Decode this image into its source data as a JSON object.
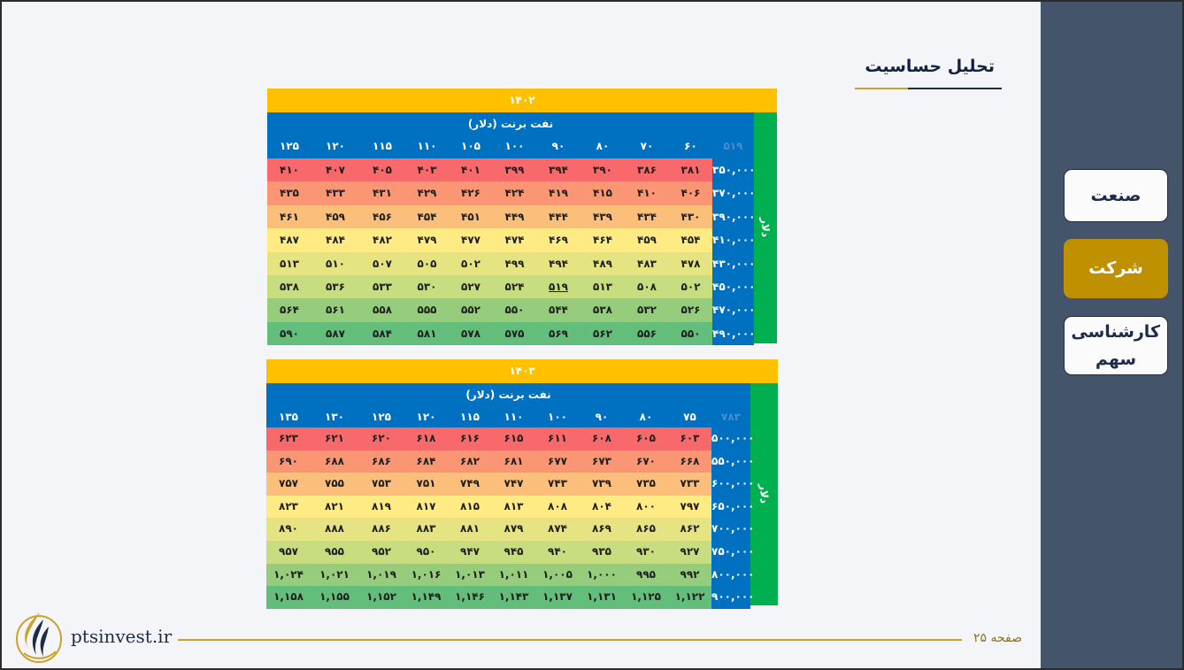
{
  "page": {
    "title": "تحلیل حساسیت",
    "page_label": "صفحه ۲۵",
    "site": "ptsinvest.ir"
  },
  "sidebar": {
    "items": [
      {
        "label": "صنعت",
        "active": false
      },
      {
        "label": "شرکت",
        "active": true
      },
      {
        "label": "کارشناسی سهم",
        "active": false
      }
    ]
  },
  "colors": {
    "year_bar": "#ffc000",
    "side_bar": "#00b050",
    "header": "#0070c0",
    "sidebar": "#44546a",
    "active_nav": "#bf9000",
    "heat_low": "#f8696b",
    "heat_mid": "#ffeb84",
    "heat_high": "#63be7b"
  },
  "tables": [
    {
      "year": "۱۴۰۲",
      "caption": "نفت برنت (دلار)",
      "side_label": "دلار",
      "corner": "۵۱۹",
      "columns": [
        "۶۰",
        "۷۰",
        "۸۰",
        "۹۰",
        "۱۰۰",
        "۱۰۵",
        "۱۱۰",
        "۱۱۵",
        "۱۲۰",
        "۱۲۵"
      ],
      "highlight": {
        "row": 5,
        "col": 3
      },
      "rows": [
        {
          "label": "۳۵۰,۰۰۰",
          "values": [
            "۳۸۱",
            "۳۸۶",
            "۳۹۰",
            "۳۹۴",
            "۳۹۹",
            "۴۰۱",
            "۴۰۳",
            "۴۰۵",
            "۴۰۷",
            "۴۱۰"
          ]
        },
        {
          "label": "۳۷۰,۰۰۰",
          "values": [
            "۴۰۶",
            "۴۱۰",
            "۴۱۵",
            "۴۱۹",
            "۴۲۴",
            "۴۲۶",
            "۴۲۹",
            "۴۳۱",
            "۴۳۳",
            "۴۳۵"
          ]
        },
        {
          "label": "۳۹۰,۰۰۰",
          "values": [
            "۴۳۰",
            "۴۳۴",
            "۴۳۹",
            "۴۴۴",
            "۴۴۹",
            "۴۵۱",
            "۴۵۴",
            "۴۵۶",
            "۴۵۹",
            "۴۶۱"
          ]
        },
        {
          "label": "۴۱۰,۰۰۰",
          "values": [
            "۴۵۴",
            "۴۵۹",
            "۴۶۴",
            "۴۶۹",
            "۴۷۴",
            "۴۷۷",
            "۴۷۹",
            "۴۸۲",
            "۴۸۴",
            "۴۸۷"
          ]
        },
        {
          "label": "۴۳۰,۰۰۰",
          "values": [
            "۴۷۸",
            "۴۸۳",
            "۴۸۹",
            "۴۹۴",
            "۴۹۹",
            "۵۰۲",
            "۵۰۵",
            "۵۰۷",
            "۵۱۰",
            "۵۱۳"
          ]
        },
        {
          "label": "۴۵۰,۰۰۰",
          "values": [
            "۵۰۲",
            "۵۰۸",
            "۵۱۳",
            "۵۱۹",
            "۵۲۴",
            "۵۲۷",
            "۵۳۰",
            "۵۳۳",
            "۵۳۶",
            "۵۳۸"
          ]
        },
        {
          "label": "۴۷۰,۰۰۰",
          "values": [
            "۵۲۶",
            "۵۳۲",
            "۵۳۸",
            "۵۴۴",
            "۵۵۰",
            "۵۵۲",
            "۵۵۵",
            "۵۵۸",
            "۵۶۱",
            "۵۶۴"
          ]
        },
        {
          "label": "۴۹۰,۰۰۰",
          "values": [
            "۵۵۰",
            "۵۵۶",
            "۵۶۲",
            "۵۶۹",
            "۵۷۵",
            "۵۷۸",
            "۵۸۱",
            "۵۸۴",
            "۵۸۷",
            "۵۹۰"
          ]
        }
      ]
    },
    {
      "year": "۱۴۰۳",
      "caption": "نفت برنت (دلار)",
      "side_label": "دلار",
      "corner": "۷۸۳",
      "columns": [
        "۷۵",
        "۸۰",
        "۹۰",
        "۱۰۰",
        "۱۱۰",
        "۱۱۵",
        "۱۲۰",
        "۱۲۵",
        "۱۳۰",
        "۱۳۵"
      ],
      "highlight": null,
      "rows": [
        {
          "label": "۵۰۰,۰۰۰",
          "values": [
            "۶۰۳",
            "۶۰۵",
            "۶۰۸",
            "۶۱۱",
            "۶۱۵",
            "۶۱۶",
            "۶۱۸",
            "۶۲۰",
            "۶۲۱",
            "۶۲۳"
          ]
        },
        {
          "label": "۵۵۰,۰۰۰",
          "values": [
            "۶۶۸",
            "۶۷۰",
            "۶۷۳",
            "۶۷۷",
            "۶۸۱",
            "۶۸۲",
            "۶۸۴",
            "۶۸۶",
            "۶۸۸",
            "۶۹۰"
          ]
        },
        {
          "label": "۶۰۰,۰۰۰",
          "values": [
            "۷۳۳",
            "۷۳۵",
            "۷۳۹",
            "۷۴۳",
            "۷۴۷",
            "۷۴۹",
            "۷۵۱",
            "۷۵۳",
            "۷۵۵",
            "۷۵۷"
          ]
        },
        {
          "label": "۶۵۰,۰۰۰",
          "values": [
            "۷۹۷",
            "۸۰۰",
            "۸۰۴",
            "۸۰۸",
            "۸۱۳",
            "۸۱۵",
            "۸۱۷",
            "۸۱۹",
            "۸۲۱",
            "۸۲۳"
          ]
        },
        {
          "label": "۷۰۰,۰۰۰",
          "values": [
            "۸۶۲",
            "۸۶۵",
            "۸۶۹",
            "۸۷۴",
            "۸۷۹",
            "۸۸۱",
            "۸۸۳",
            "۸۸۶",
            "۸۸۸",
            "۸۹۰"
          ]
        },
        {
          "label": "۷۵۰,۰۰۰",
          "values": [
            "۹۲۷",
            "۹۳۰",
            "۹۳۵",
            "۹۴۰",
            "۹۴۵",
            "۹۴۷",
            "۹۵۰",
            "۹۵۲",
            "۹۵۵",
            "۹۵۷"
          ]
        },
        {
          "label": "۸۰۰,۰۰۰",
          "values": [
            "۹۹۲",
            "۹۹۵",
            "۱,۰۰۰",
            "۱,۰۰۵",
            "۱,۰۱۱",
            "۱,۰۱۳",
            "۱,۰۱۶",
            "۱,۰۱۹",
            "۱,۰۲۱",
            "۱,۰۲۴"
          ]
        },
        {
          "label": "۹۰۰,۰۰۰",
          "values": [
            "۱,۱۲۲",
            "۱,۱۲۵",
            "۱,۱۳۱",
            "۱,۱۳۷",
            "۱,۱۴۳",
            "۱,۱۴۶",
            "۱,۱۴۹",
            "۱,۱۵۲",
            "۱,۱۵۵",
            "۱,۱۵۸"
          ]
        }
      ]
    }
  ]
}
